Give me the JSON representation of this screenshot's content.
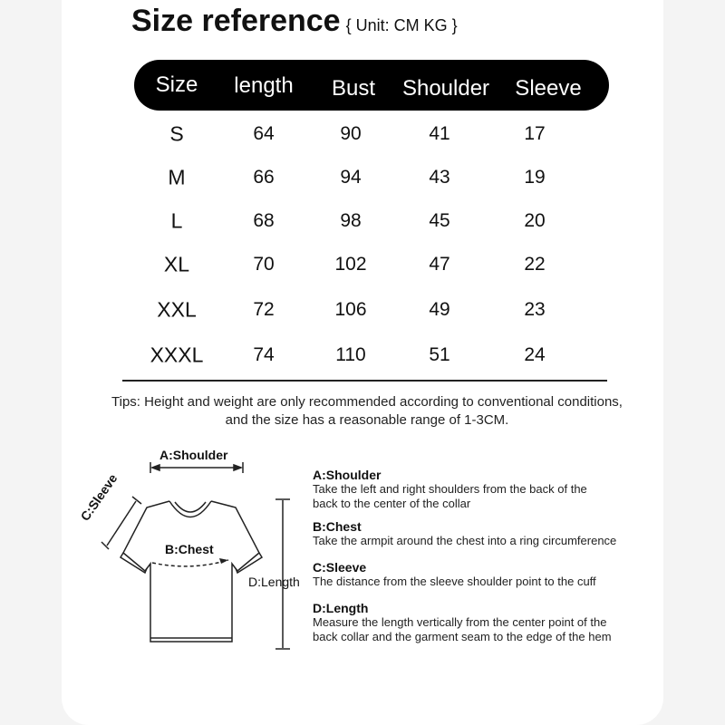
{
  "title": "Size reference",
  "unit": "{ Unit: CM KG }",
  "table": {
    "headers": [
      "Size",
      "length",
      "Bust",
      "Shoulder",
      "Sleeve"
    ],
    "rows": [
      [
        "S",
        "64",
        "90",
        "41",
        "17"
      ],
      [
        "M",
        "66",
        "94",
        "43",
        "19"
      ],
      [
        "L",
        "68",
        "98",
        "45",
        "20"
      ],
      [
        "XL",
        "70",
        "102",
        "47",
        "22"
      ],
      [
        "XXL",
        "72",
        "106",
        "49",
        "23"
      ],
      [
        "XXXL",
        "74",
        "110",
        "51",
        "24"
      ]
    ]
  },
  "tips": "Tips: Height and weight are only recommended according to conventional conditions, and the size has a reasonable range of 1-3CM.",
  "diagram": {
    "shoulder": "A:Shoulder",
    "chest": "B:Chest",
    "sleeve": "C:Sleeve",
    "length": "D:Length"
  },
  "descriptions": [
    {
      "title": "A:Shoulder",
      "text": "Take the left and right shoulders from the back of the back to the center of the collar"
    },
    {
      "title": "B:Chest",
      "text": "Take the armpit around the chest into a ring circumference"
    },
    {
      "title": "C:Sleeve",
      "text": "The distance from the sleeve shoulder point to the cuff"
    },
    {
      "title": "D:Length",
      "text": "Measure the length vertically from the center point of the back collar and the garment seam to the edge of the hem"
    }
  ]
}
